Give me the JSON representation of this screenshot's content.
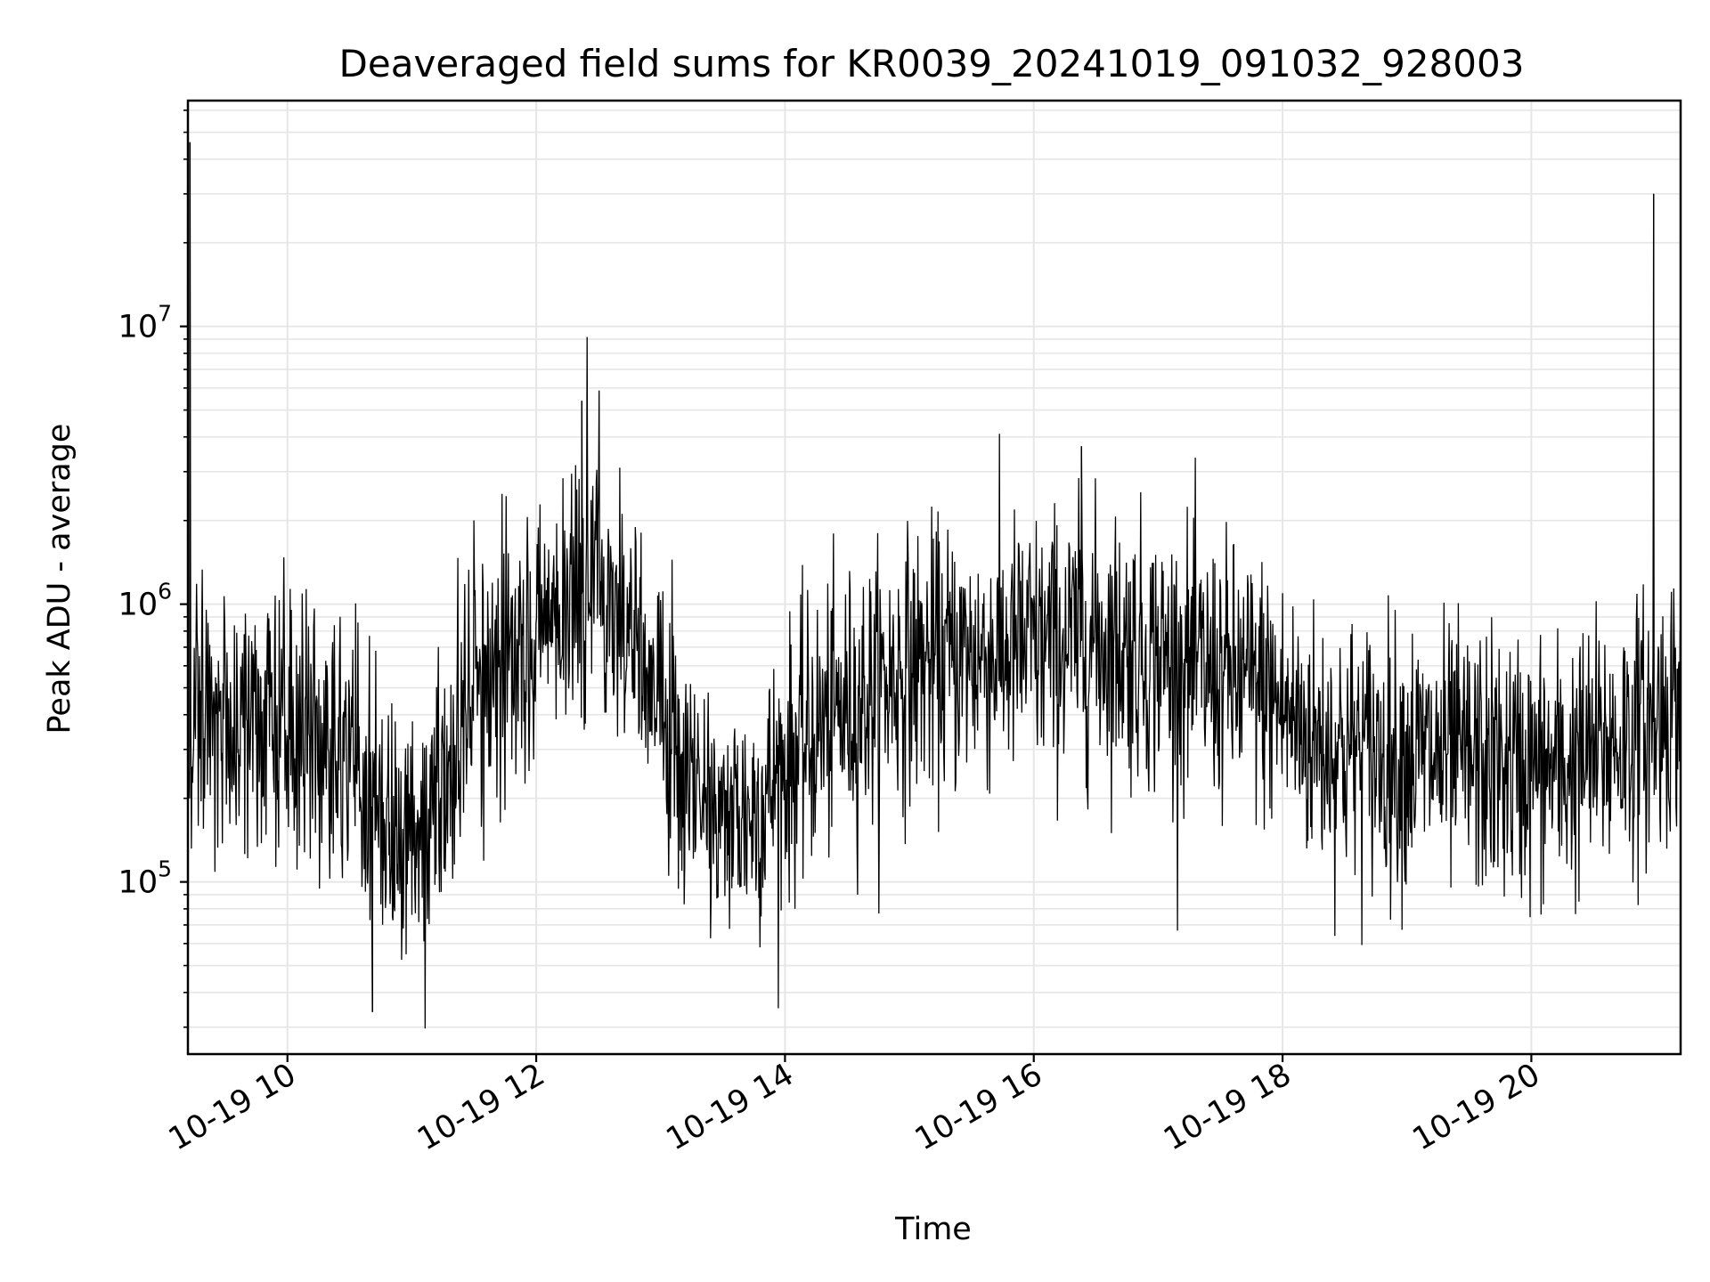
{
  "chart_data": {
    "type": "line",
    "title": "Deaveraged field sums for KR0039_20241019_091032_928003",
    "xlabel": "Time",
    "ylabel": "Peak ADU - average",
    "y_scale": "log",
    "ylim": [
      24000,
      65000000
    ],
    "xlim": [
      "2024-10-19 09:12",
      "2024-10-19 21:12"
    ],
    "grid": true,
    "line_color": "#000000",
    "grid_color": "#e6e6e6",
    "x_ticks": [
      {
        "value": "2024-10-19 10:00",
        "label": "10-19 10"
      },
      {
        "value": "2024-10-19 12:00",
        "label": "10-19 12"
      },
      {
        "value": "2024-10-19 14:00",
        "label": "10-19 14"
      },
      {
        "value": "2024-10-19 16:00",
        "label": "10-19 16"
      },
      {
        "value": "2024-10-19 18:00",
        "label": "10-19 18"
      },
      {
        "value": "2024-10-19 20:00",
        "label": "10-19 20"
      }
    ],
    "y_ticks": [
      {
        "value": 100000,
        "base": "10",
        "exp": "5"
      },
      {
        "value": 1000000,
        "base": "10",
        "exp": "6"
      },
      {
        "value": 10000000,
        "base": "10",
        "exp": "7"
      }
    ],
    "x": [
      "2024-10-19 09:12",
      "2024-10-19 09:15",
      "2024-10-19 09:30",
      "2024-10-19 09:45",
      "2024-10-19 10:00",
      "2024-10-19 10:15",
      "2024-10-19 10:30",
      "2024-10-19 10:40",
      "2024-10-19 10:50",
      "2024-10-19 11:00",
      "2024-10-19 11:15",
      "2024-10-19 11:30",
      "2024-10-19 11:45",
      "2024-10-19 12:00",
      "2024-10-19 12:15",
      "2024-10-19 12:30",
      "2024-10-19 12:45",
      "2024-10-19 13:00",
      "2024-10-19 13:15",
      "2024-10-19 13:30",
      "2024-10-19 13:45",
      "2024-10-19 14:00",
      "2024-10-19 14:15",
      "2024-10-19 14:30",
      "2024-10-19 14:45",
      "2024-10-19 15:00",
      "2024-10-19 15:30",
      "2024-10-19 16:00",
      "2024-10-19 16:30",
      "2024-10-19 17:00",
      "2024-10-19 17:30",
      "2024-10-19 17:50",
      "2024-10-19 18:15",
      "2024-10-19 18:45",
      "2024-10-19 19:15",
      "2024-10-19 19:45",
      "2024-10-19 20:15",
      "2024-10-19 20:45",
      "2024-10-19 21:00",
      "2024-10-19 21:12"
    ],
    "series": [
      {
        "values": [
          300000,
          320000,
          360000,
          380000,
          360000,
          340000,
          280000,
          190000,
          160000,
          150000,
          200000,
          500000,
          700000,
          850000,
          1000000,
          1200000,
          900000,
          400000,
          220000,
          170000,
          180000,
          260000,
          350000,
          420000,
          500000,
          600000,
          650000,
          700000,
          750000,
          650000,
          550000,
          500000,
          320000,
          290000,
          280000,
          260000,
          250000,
          330000,
          380000,
          480000
        ]
      }
    ],
    "spikes": [
      {
        "x": "2024-10-19 09:13",
        "y": 46000000
      },
      {
        "x": "2024-10-19 20:59",
        "y": 30000000
      },
      {
        "x": "2024-10-19 10:41",
        "y": 34000
      },
      {
        "x": "2024-10-19 12:22",
        "y": 5400000
      },
      {
        "x": "2024-10-19 16:23",
        "y": 3700000
      }
    ]
  }
}
